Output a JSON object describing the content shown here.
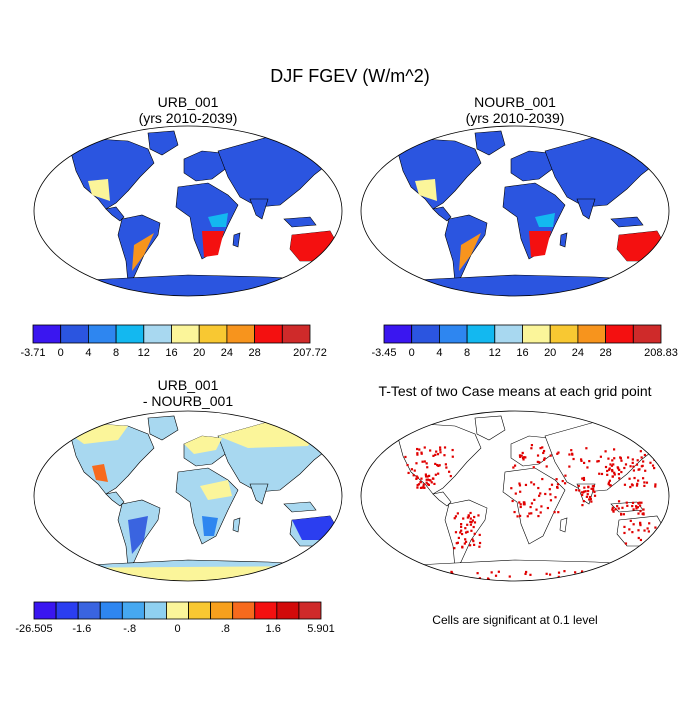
{
  "title": "DJF FGEV (W/m^2)",
  "chart_data": [
    {
      "type": "heatmap",
      "title": "URB_001",
      "subtitle": "(yrs 2010-2039)",
      "colorbar": {
        "colors": [
          "#3a16f0",
          "#2b55e0",
          "#2e86f0",
          "#13b8f0",
          "#a8d8f0",
          "#fbf59a",
          "#f8c832",
          "#f7941d",
          "#f41010",
          "#cf2a2a"
        ],
        "labels": [
          "-3.71",
          "0",
          "4",
          "8",
          "12",
          "16",
          "20",
          "24",
          "28",
          "207.72"
        ]
      }
    },
    {
      "type": "heatmap",
      "title": "NOURB_001",
      "subtitle": "(yrs 2010-2039)",
      "colorbar": {
        "colors": [
          "#3a16f0",
          "#2b55e0",
          "#2e86f0",
          "#13b8f0",
          "#a8d8f0",
          "#fbf59a",
          "#f8c832",
          "#f7941d",
          "#f41010",
          "#cf2a2a"
        ],
        "labels": [
          "-3.45",
          "0",
          "4",
          "8",
          "12",
          "16",
          "20",
          "24",
          "28",
          "208.83"
        ]
      }
    },
    {
      "type": "heatmap",
      "title": "URB_001",
      "subtitle": "- NOURB_001",
      "colorbar": {
        "colors": [
          "#3a16f0",
          "#2b3ef0",
          "#3a64e0",
          "#2e86f0",
          "#46a8f0",
          "#8fd0f0",
          "#fbf59a",
          "#f8c832",
          "#f7a01d",
          "#f76a1d",
          "#f41010",
          "#d20a0a",
          "#cf2a2a"
        ],
        "labels": [
          "-26.505",
          "-1.6",
          "-.8",
          "0",
          ".8",
          "1.6",
          "5.901"
        ]
      }
    },
    {
      "type": "heatmap",
      "title": "T-Test of two Case means at each grid point",
      "note": "Cells are significant at 0.1 level",
      "colors": {
        "significant": "#e00000",
        "background": "#ffffff"
      }
    }
  ],
  "map_colors": {
    "ocean": "#ffffff",
    "outline": "#000000",
    "coast": "#000000",
    "diff_land_base": "#a8d8f0"
  }
}
